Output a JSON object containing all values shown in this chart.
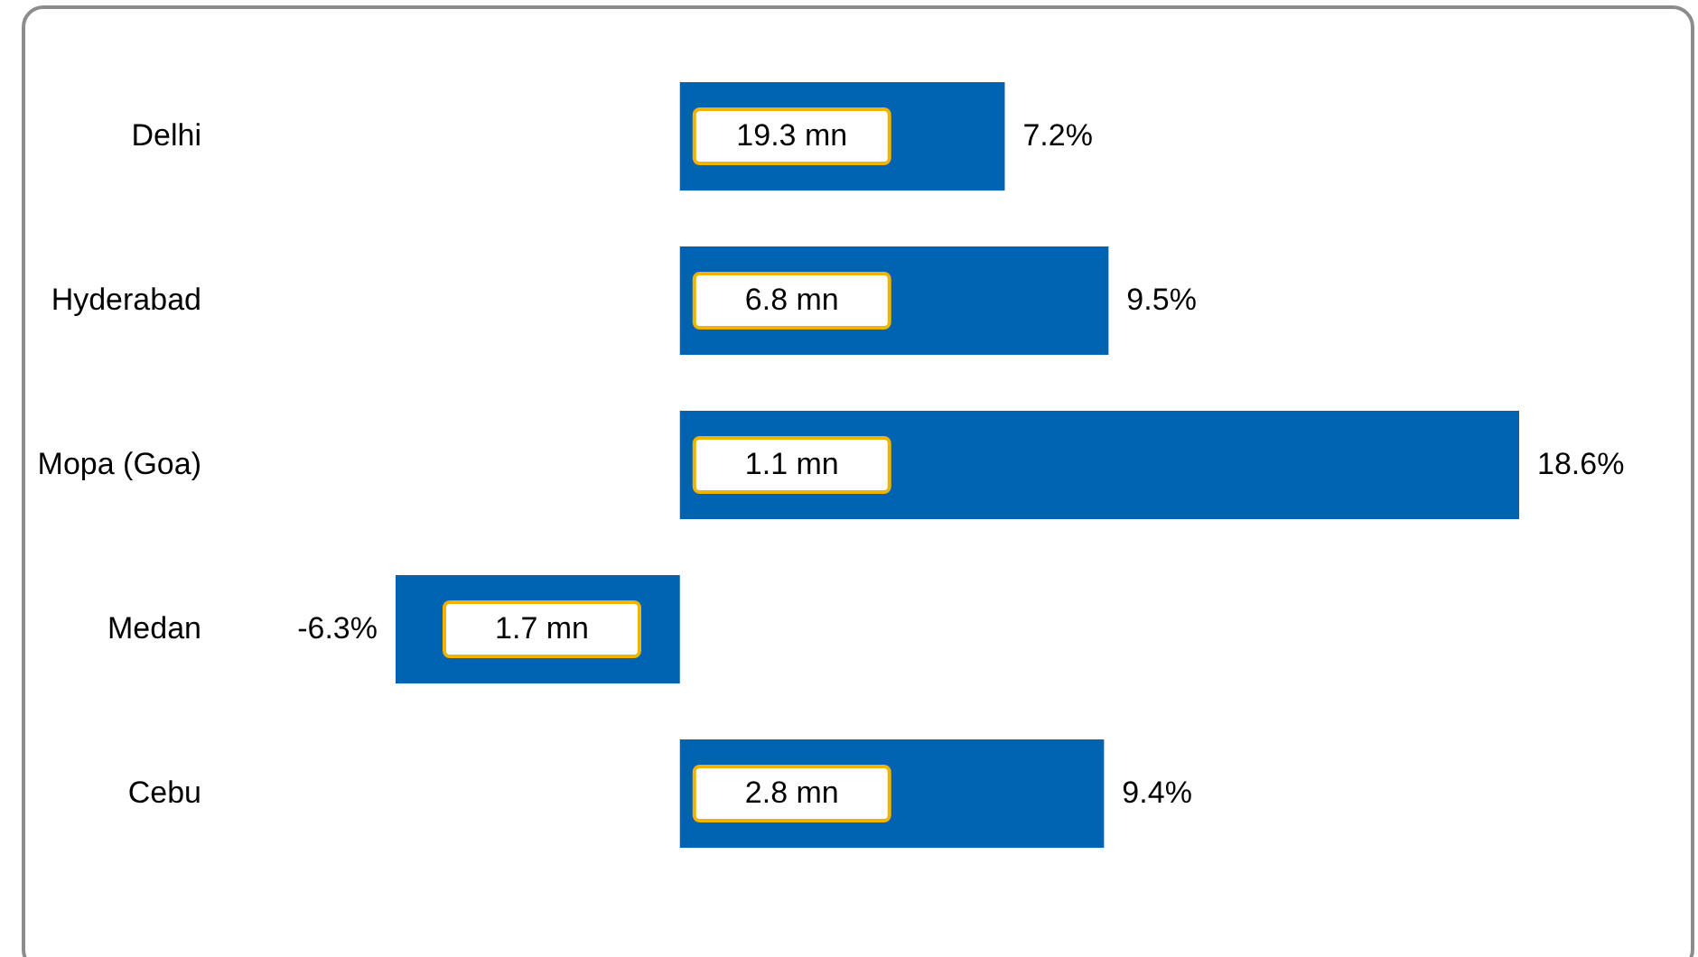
{
  "chart_data": {
    "type": "bar",
    "orientation": "horizontal",
    "color": "#0063b1",
    "categories": [
      "Delhi",
      "Hyderabad",
      "Mopa (Goa)",
      "Medan",
      "Cebu"
    ],
    "values": [
      7.2,
      9.5,
      18.6,
      -6.3,
      9.4
    ],
    "value_labels": [
      "7.2%",
      "9.5%",
      "18.6%",
      "-6.3%",
      "9.4%"
    ],
    "annotations": [
      "19.3 mn",
      "6.8 mn",
      "1.1 mn",
      "1.7 mn",
      "2.8 mn"
    ]
  }
}
